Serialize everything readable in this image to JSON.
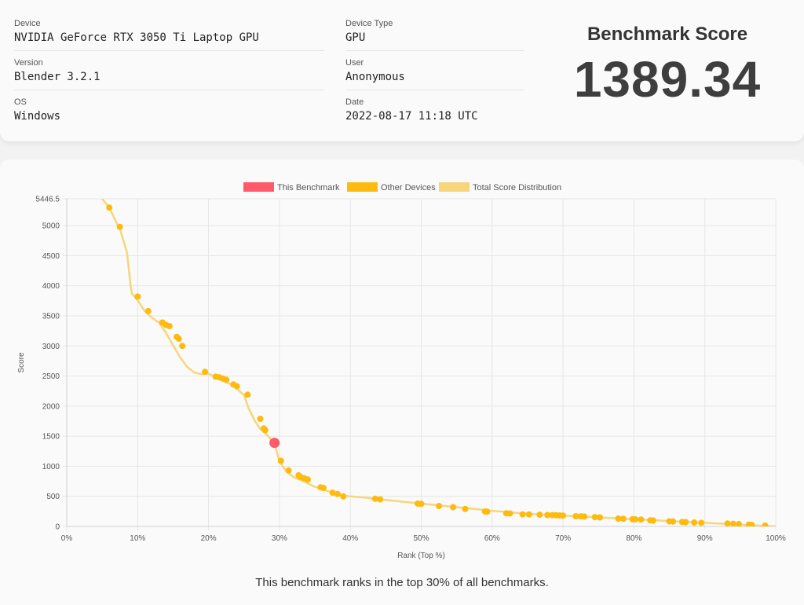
{
  "info": {
    "device": {
      "label": "Device",
      "value": "NVIDIA GeForce RTX 3050 Ti Laptop GPU"
    },
    "version": {
      "label": "Version",
      "value": "Blender 3.2.1"
    },
    "os": {
      "label": "OS",
      "value": "Windows"
    },
    "device_type": {
      "label": "Device Type",
      "value": "GPU"
    },
    "user": {
      "label": "User",
      "value": "Anonymous"
    },
    "date": {
      "label": "Date",
      "value": "2022-08-17 11:18 UTC"
    }
  },
  "score": {
    "label": "Benchmark Score",
    "value": "1389.34"
  },
  "caption": "This benchmark ranks in the top 30% of all benchmarks.",
  "colors": {
    "this_benchmark": "#ff5a6a",
    "other_devices": "#fdbb10",
    "distribution": "#f7d57c"
  },
  "chart_data": {
    "type": "scatter",
    "legend": [
      "This Benchmark",
      "Other Devices",
      "Total Score Distribution"
    ],
    "legend_position": "top-center",
    "xlabel": "Rank (Top %)",
    "ylabel": "Score",
    "xlim": [
      0,
      100
    ],
    "ylim": [
      0,
      5446.5
    ],
    "x_ticks": [
      "0%",
      "10%",
      "20%",
      "30%",
      "40%",
      "50%",
      "60%",
      "70%",
      "80%",
      "90%",
      "100%"
    ],
    "y_ticks": [
      "0",
      "500",
      "1000",
      "1500",
      "2000",
      "2500",
      "3000",
      "3500",
      "4000",
      "4500",
      "5000",
      "5446.5"
    ],
    "grid": true,
    "this_benchmark": {
      "x": 29.3,
      "y": 1389.34
    },
    "distribution": {
      "x": [
        5,
        6,
        7,
        7.5,
        8,
        8.5,
        9,
        9.2,
        10,
        11,
        12,
        13,
        14,
        15,
        16,
        17,
        18,
        19,
        20,
        21,
        22,
        23,
        24,
        25,
        25.7,
        26.5,
        27.3,
        28,
        29.3,
        30,
        31,
        32,
        33,
        35,
        37,
        39,
        42,
        45,
        50,
        55,
        60,
        65,
        70,
        75,
        80,
        85,
        90,
        95,
        100
      ],
      "y": [
        5446.5,
        5300,
        5050,
        4950,
        4750,
        4550,
        4000,
        3870,
        3760,
        3580,
        3470,
        3390,
        3220,
        3010,
        2810,
        2650,
        2560,
        2530,
        2540,
        2480,
        2420,
        2370,
        2290,
        2180,
        1950,
        1760,
        1620,
        1550,
        1389,
        1080,
        910,
        820,
        770,
        660,
        580,
        510,
        480,
        440,
        380,
        320,
        260,
        210,
        180,
        150,
        120,
        90,
        60,
        30,
        0
      ]
    },
    "other_devices": {
      "x": [
        6,
        7.5,
        10,
        11.5,
        13.5,
        14,
        14.5,
        15.5,
        15.8,
        16.3,
        19.5,
        21,
        21.5,
        22,
        22.5,
        23.5,
        24,
        25.5,
        27.3,
        27.8,
        28,
        30.2,
        31.3,
        32.7,
        33,
        33.5,
        34,
        35.8,
        36.2,
        37.5,
        38.2,
        39,
        43.5,
        44.2,
        49.5,
        50,
        52.5,
        54.5,
        56.2,
        59,
        59.3,
        62,
        62.5,
        64.3,
        65.2,
        66.7,
        67.8,
        68.5,
        69,
        69.5,
        70,
        71.8,
        72.5,
        73,
        74.5,
        75.2,
        77.8,
        78.5,
        79.8,
        80.2,
        81,
        82.3,
        82.7,
        85,
        85.5,
        86.8,
        87.3,
        88.5,
        89.5,
        93.2,
        94,
        94.8,
        96.2,
        96.6,
        98.5
      ],
      "y": [
        5300,
        4980,
        3820,
        3580,
        3390,
        3350,
        3330,
        3150,
        3120,
        3000,
        2570,
        2490,
        2480,
        2460,
        2440,
        2360,
        2330,
        2190,
        1790,
        1630,
        1600,
        1090,
        930,
        850,
        820,
        800,
        780,
        650,
        640,
        560,
        540,
        500,
        460,
        450,
        380,
        375,
        340,
        320,
        290,
        250,
        245,
        220,
        215,
        200,
        200,
        195,
        190,
        188,
        185,
        183,
        180,
        170,
        168,
        165,
        155,
        150,
        130,
        128,
        120,
        118,
        115,
        100,
        98,
        85,
        82,
        75,
        72,
        65,
        60,
        50,
        45,
        40,
        30,
        28,
        15
      ]
    }
  }
}
